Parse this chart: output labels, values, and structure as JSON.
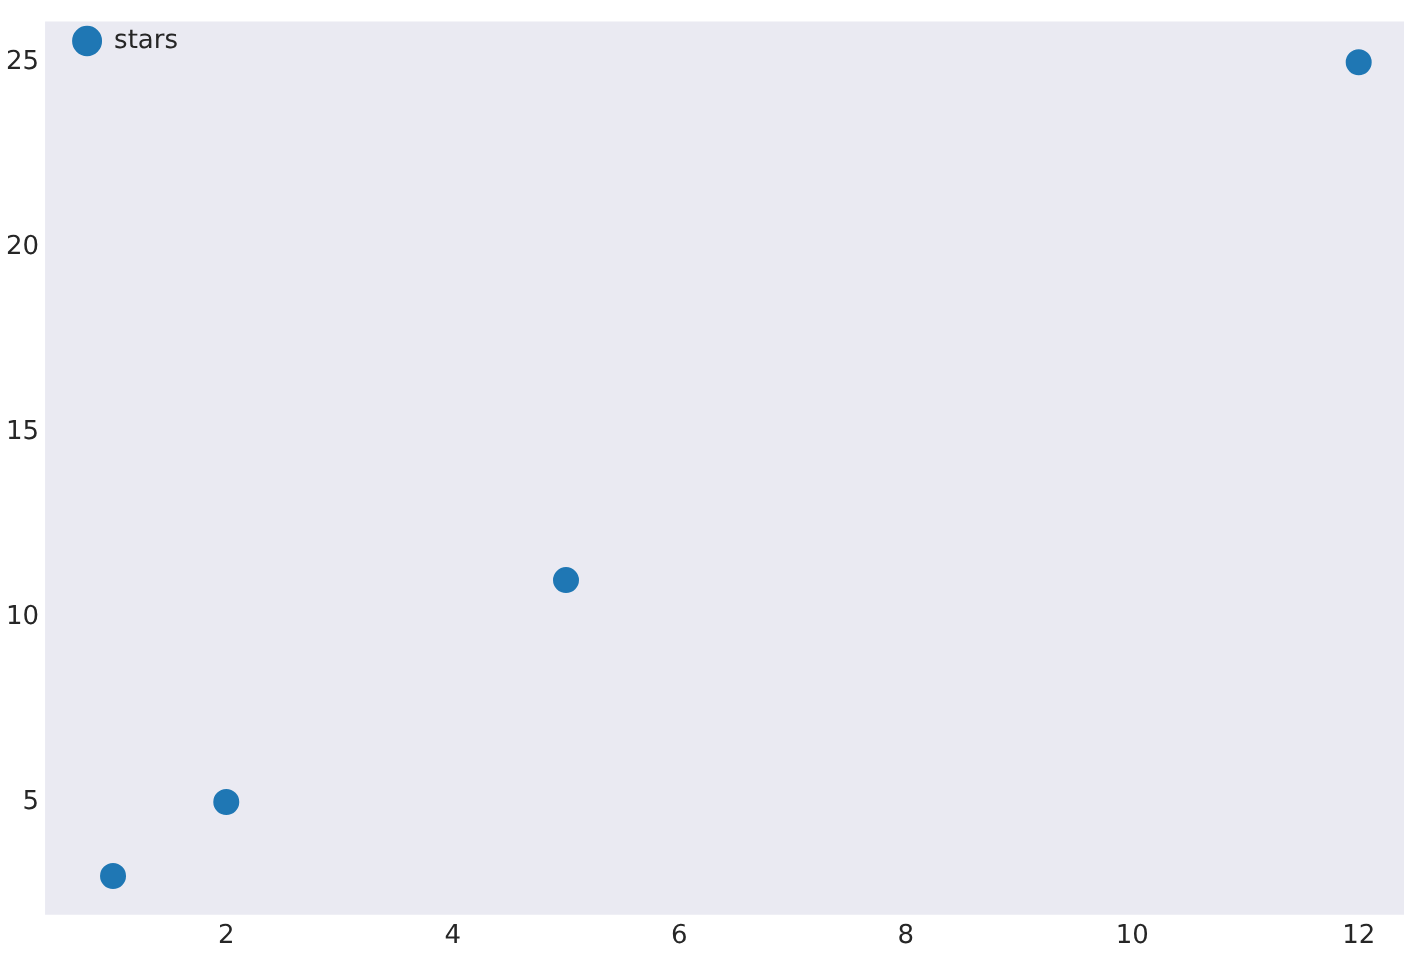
{
  "chart_data": {
    "type": "scatter",
    "series": [
      {
        "name": "stars",
        "color": "#1f77b4",
        "x": [
          1,
          2,
          5,
          12
        ],
        "values": [
          3,
          5,
          11,
          25
        ]
      }
    ],
    "xlim": [
      0.4,
      12.4
    ],
    "ylim": [
      1.95,
      26.1
    ],
    "xticks": [
      2,
      4,
      6,
      8,
      10,
      12
    ],
    "yticks": [
      5,
      10,
      15,
      20,
      25
    ],
    "grid": false,
    "legend": "top left",
    "marker": "circle"
  }
}
